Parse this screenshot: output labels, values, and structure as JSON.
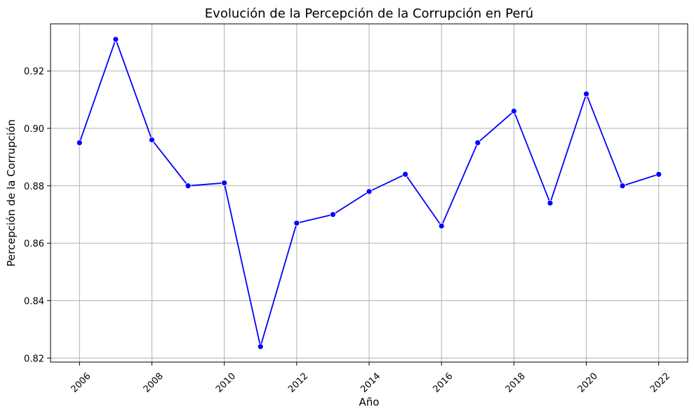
{
  "chart_data": {
    "type": "line",
    "title": "Evolución de la Percepción de la Corrupción en Perú",
    "xlabel": "Año",
    "ylabel": "Percepción de la Corrupción",
    "x": [
      2006,
      2007,
      2008,
      2009,
      2010,
      2011,
      2012,
      2013,
      2014,
      2015,
      2016,
      2017,
      2018,
      2019,
      2020,
      2021,
      2022
    ],
    "series": [
      {
        "values": [
          0.895,
          0.931,
          0.896,
          0.88,
          0.881,
          0.824,
          0.867,
          0.87,
          0.878,
          0.884,
          0.866,
          0.895,
          0.906,
          0.874,
          0.912,
          0.88,
          0.884
        ],
        "color": "#0000ff",
        "marker": "circle"
      }
    ],
    "xticks": [
      2006,
      2008,
      2010,
      2012,
      2014,
      2016,
      2018,
      2020,
      2022
    ],
    "xtick_labels": [
      "2006",
      "2008",
      "2010",
      "2012",
      "2014",
      "2016",
      "2018",
      "2020",
      "2022"
    ],
    "yticks": [
      0.82,
      0.84,
      0.86,
      0.88,
      0.9,
      0.92
    ],
    "ytick_labels": [
      "0.82",
      "0.84",
      "0.86",
      "0.88",
      "0.90",
      "0.92"
    ],
    "xlim": [
      2005.2,
      2022.8
    ],
    "ylim": [
      0.8186,
      0.9364
    ],
    "xtick_rotation": 45,
    "grid": true,
    "legend": false
  }
}
